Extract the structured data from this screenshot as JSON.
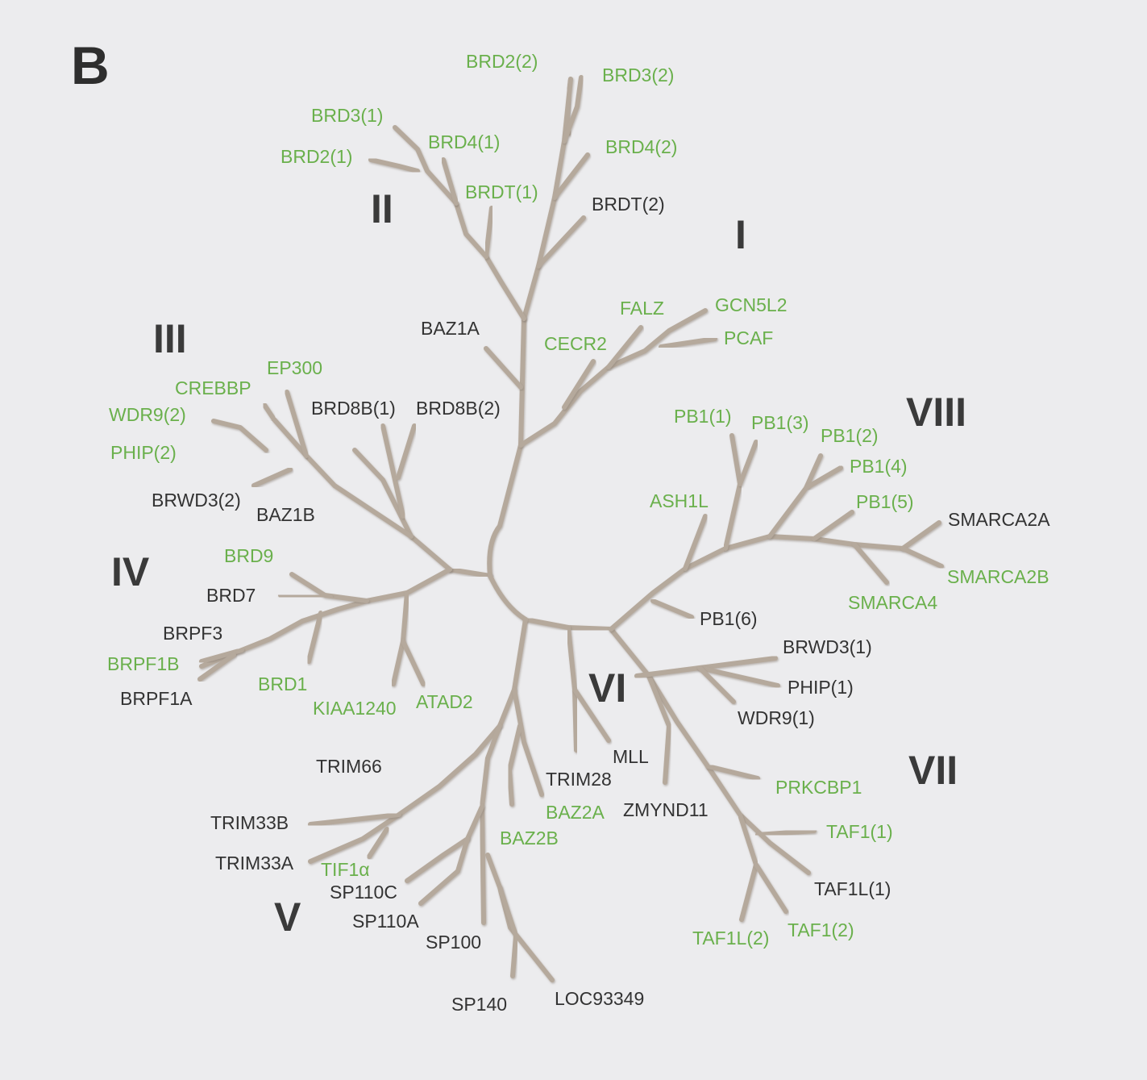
{
  "panel_label": "B",
  "colors": {
    "highlight": "#6ab04c",
    "normal": "#333333",
    "branch": "#b5a99c",
    "background": "#ececee"
  },
  "groups": [
    {
      "id": "g1",
      "label": "I"
    },
    {
      "id": "g2",
      "label": "II"
    },
    {
      "id": "g3",
      "label": "III"
    },
    {
      "id": "g4",
      "label": "IV"
    },
    {
      "id": "g5",
      "label": "V"
    },
    {
      "id": "g6",
      "label": "VI"
    },
    {
      "id": "g7",
      "label": "VII"
    },
    {
      "id": "g8",
      "label": "VIII"
    }
  ],
  "leaves": [
    {
      "id": "BRD2_2",
      "label": "BRD2(2)",
      "highlight": true
    },
    {
      "id": "BRD3_2",
      "label": "BRD3(2)",
      "highlight": true
    },
    {
      "id": "BRD4_2",
      "label": "BRD4(2)",
      "highlight": true
    },
    {
      "id": "BRDT_2",
      "label": "BRDT(2)",
      "highlight": false
    },
    {
      "id": "BRD3_1",
      "label": "BRD3(1)",
      "highlight": true
    },
    {
      "id": "BRD2_1",
      "label": "BRD2(1)",
      "highlight": true
    },
    {
      "id": "BRD4_1",
      "label": "BRD4(1)",
      "highlight": true
    },
    {
      "id": "BRDT_1",
      "label": "BRDT(1)",
      "highlight": true
    },
    {
      "id": "BAZ1A",
      "label": "BAZ1A",
      "highlight": false
    },
    {
      "id": "FALZ",
      "label": "FALZ",
      "highlight": true
    },
    {
      "id": "GCN5L2",
      "label": "GCN5L2",
      "highlight": true
    },
    {
      "id": "PCAF",
      "label": "PCAF",
      "highlight": true
    },
    {
      "id": "CECR2",
      "label": "CECR2",
      "highlight": true
    },
    {
      "id": "EP300",
      "label": "EP300",
      "highlight": true
    },
    {
      "id": "CREBBP",
      "label": "CREBBP",
      "highlight": true
    },
    {
      "id": "WDR9_2",
      "label": "WDR9(2)",
      "highlight": true
    },
    {
      "id": "PHIP_2",
      "label": "PHIP(2)",
      "highlight": true
    },
    {
      "id": "BRWD3_2",
      "label": "BRWD3(2)",
      "highlight": false
    },
    {
      "id": "BAZ1B",
      "label": "BAZ1B",
      "highlight": false
    },
    {
      "id": "BRD8B_1",
      "label": "BRD8B(1)",
      "highlight": false
    },
    {
      "id": "BRD8B_2",
      "label": "BRD8B(2)",
      "highlight": false
    },
    {
      "id": "PB1_1",
      "label": "PB1(1)",
      "highlight": true
    },
    {
      "id": "PB1_3",
      "label": "PB1(3)",
      "highlight": true
    },
    {
      "id": "PB1_2",
      "label": "PB1(2)",
      "highlight": true
    },
    {
      "id": "PB1_4",
      "label": "PB1(4)",
      "highlight": true
    },
    {
      "id": "PB1_5",
      "label": "PB1(5)",
      "highlight": true
    },
    {
      "id": "SMARCA2A",
      "label": "SMARCA2A",
      "highlight": false
    },
    {
      "id": "SMARCA2B",
      "label": "SMARCA2B",
      "highlight": true
    },
    {
      "id": "SMARCA4",
      "label": "SMARCA4",
      "highlight": true
    },
    {
      "id": "ASH1L",
      "label": "ASH1L",
      "highlight": true
    },
    {
      "id": "PB1_6",
      "label": "PB1(6)",
      "highlight": false
    },
    {
      "id": "BRD9",
      "label": "BRD9",
      "highlight": true
    },
    {
      "id": "BRD7",
      "label": "BRD7",
      "highlight": false
    },
    {
      "id": "BRPF3",
      "label": "BRPF3",
      "highlight": false
    },
    {
      "id": "BRPF1B",
      "label": "BRPF1B",
      "highlight": true
    },
    {
      "id": "BRPF1A",
      "label": "BRPF1A",
      "highlight": false
    },
    {
      "id": "BRD1",
      "label": "BRD1",
      "highlight": true
    },
    {
      "id": "KIAA1240",
      "label": "KIAA1240",
      "highlight": true
    },
    {
      "id": "ATAD2",
      "label": "ATAD2",
      "highlight": true
    },
    {
      "id": "BRWD3_1",
      "label": "BRWD3(1)",
      "highlight": false
    },
    {
      "id": "PHIP_1",
      "label": "PHIP(1)",
      "highlight": false
    },
    {
      "id": "WDR9_1",
      "label": "WDR9(1)",
      "highlight": false
    },
    {
      "id": "MLL",
      "label": "MLL",
      "highlight": false
    },
    {
      "id": "TRIM28",
      "label": "TRIM28",
      "highlight": false
    },
    {
      "id": "ZMYND11",
      "label": "ZMYND11",
      "highlight": false
    },
    {
      "id": "PRKCBP1",
      "label": "PRKCBP1",
      "highlight": true
    },
    {
      "id": "TAF1_1",
      "label": "TAF1(1)",
      "highlight": true
    },
    {
      "id": "TAF1L_1",
      "label": "TAF1L(1)",
      "highlight": false
    },
    {
      "id": "TAF1_2",
      "label": "TAF1(2)",
      "highlight": true
    },
    {
      "id": "TAF1L_2",
      "label": "TAF1L(2)",
      "highlight": true
    },
    {
      "id": "TRIM66",
      "label": "TRIM66",
      "highlight": false
    },
    {
      "id": "BAZ2A",
      "label": "BAZ2A",
      "highlight": true
    },
    {
      "id": "BAZ2B",
      "label": "BAZ2B",
      "highlight": true
    },
    {
      "id": "TRIM33B",
      "label": "TRIM33B",
      "highlight": false
    },
    {
      "id": "TRIM33A",
      "label": "TRIM33A",
      "highlight": false
    },
    {
      "id": "TIF1a",
      "label": "TIF1α",
      "highlight": true
    },
    {
      "id": "SP110C",
      "label": "SP110C",
      "highlight": false
    },
    {
      "id": "SP110A",
      "label": "SP110A",
      "highlight": false
    },
    {
      "id": "SP100",
      "label": "SP100",
      "highlight": false
    },
    {
      "id": "SP140",
      "label": "SP140",
      "highlight": false
    },
    {
      "id": "LOC93349",
      "label": "LOC93349",
      "highlight": false
    }
  ]
}
